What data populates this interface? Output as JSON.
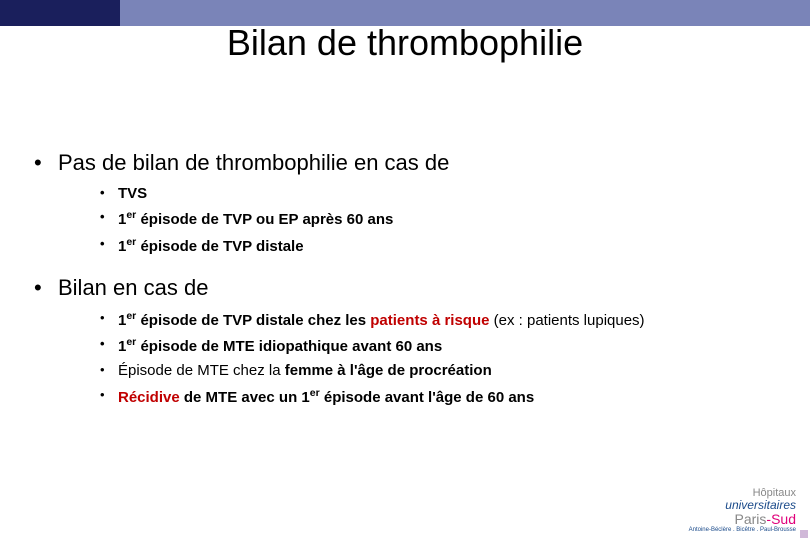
{
  "colors": {
    "header_dark": "#1a1f5c",
    "header_light": "#7a84b8",
    "text": "#000000",
    "accent_red": "#c00000",
    "background": "#ffffff"
  },
  "title": "Bilan de thrombophilie",
  "section1": {
    "heading": "Pas de bilan de thrombophilie en cas de",
    "items": {
      "a": "TVS",
      "b_pre": "1",
      "b_sup": "er",
      "b_post": " épisode de TVP ou EP après 60 ans",
      "c_pre": "1",
      "c_sup": "er",
      "c_post": " épisode de TVP distale"
    }
  },
  "section2": {
    "heading": "Bilan en cas de",
    "items": {
      "a_pre": "1",
      "a_sup": "er",
      "a_mid": " épisode de TVP distale chez les ",
      "a_red": "patients à risque ",
      "a_tail": "(ex : patients lupiques)",
      "b_pre": "1",
      "b_sup": "er",
      "b_post": " épisode de MTE idiopathique avant 60 ans",
      "c_pre": "Épisode de MTE chez la ",
      "c_bold": "femme à l'âge de procréation",
      "d_red": "Récidive",
      "d_mid": " de MTE avec un 1",
      "d_sup": "er",
      "d_post": " épisode avant l'âge de 60 ans"
    }
  },
  "footer": {
    "line1a": "Hôpitaux",
    "line1b": "universitaires",
    "line2a": "Paris",
    "line2b": "-Sud",
    "line3": "Antoine-Béclère . Bicêtre . Paul-Brousse"
  }
}
